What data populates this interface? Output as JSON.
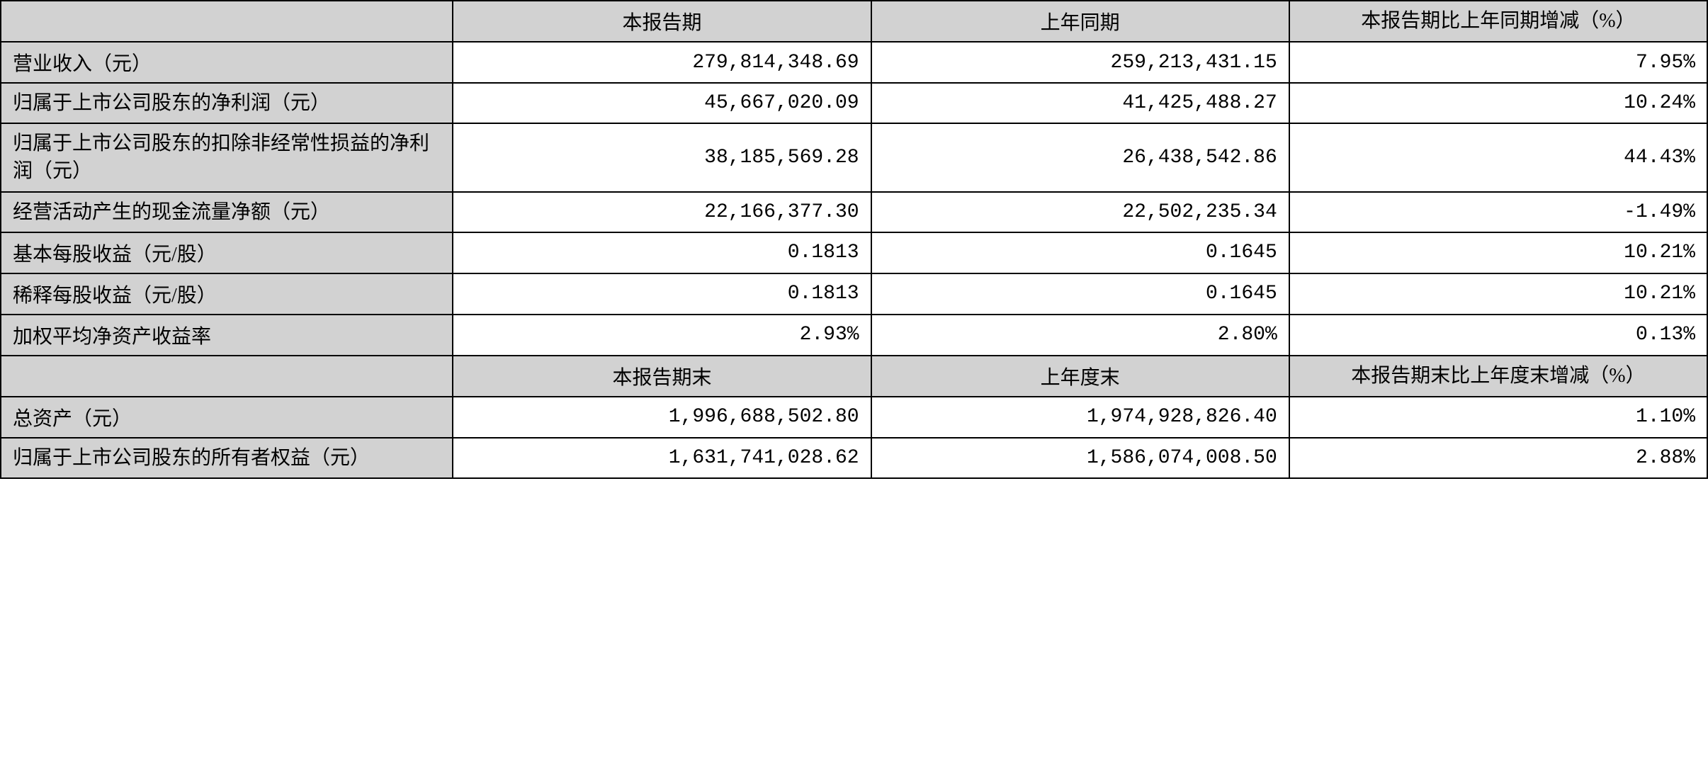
{
  "table": {
    "headers1": {
      "empty": "",
      "col1": "本报告期",
      "col2": "上年同期",
      "col3": "本报告期比上年同期增减（%）"
    },
    "rows1": [
      {
        "label": "营业收入（元）",
        "v1": "279,814,348.69",
        "v2": "259,213,431.15",
        "v3": "7.95%"
      },
      {
        "label": "归属于上市公司股东的净利润（元）",
        "v1": "45,667,020.09",
        "v2": "41,425,488.27",
        "v3": "10.24%"
      },
      {
        "label": "归属于上市公司股东的扣除非经常性损益的净利润（元）",
        "v1": "38,185,569.28",
        "v2": "26,438,542.86",
        "v3": "44.43%"
      },
      {
        "label": "经营活动产生的现金流量净额（元）",
        "v1": "22,166,377.30",
        "v2": "22,502,235.34",
        "v3": "-1.49%"
      },
      {
        "label": "基本每股收益（元/股）",
        "v1": "0.1813",
        "v2": "0.1645",
        "v3": "10.21%"
      },
      {
        "label": "稀释每股收益（元/股）",
        "v1": "0.1813",
        "v2": "0.1645",
        "v3": "10.21%"
      },
      {
        "label": "加权平均净资产收益率",
        "v1": "2.93%",
        "v2": "2.80%",
        "v3": "0.13%"
      }
    ],
    "headers2": {
      "empty": "",
      "col1": "本报告期末",
      "col2": "上年度末",
      "col3": "本报告期末比上年度末增减（%）"
    },
    "rows2": [
      {
        "label": "总资产（元）",
        "v1": "1,996,688,502.80",
        "v2": "1,974,928,826.40",
        "v3": "1.10%"
      },
      {
        "label": "归属于上市公司股东的所有者权益（元）",
        "v1": "1,631,741,028.62",
        "v2": "1,586,074,008.50",
        "v3": "2.88%"
      }
    ]
  },
  "styling": {
    "header_bg": "#d2d2d2",
    "label_bg": "#d2d2d2",
    "value_bg": "#ffffff",
    "border_color": "#000000",
    "text_color": "#000000",
    "font_size": 28,
    "border_width": 2
  }
}
